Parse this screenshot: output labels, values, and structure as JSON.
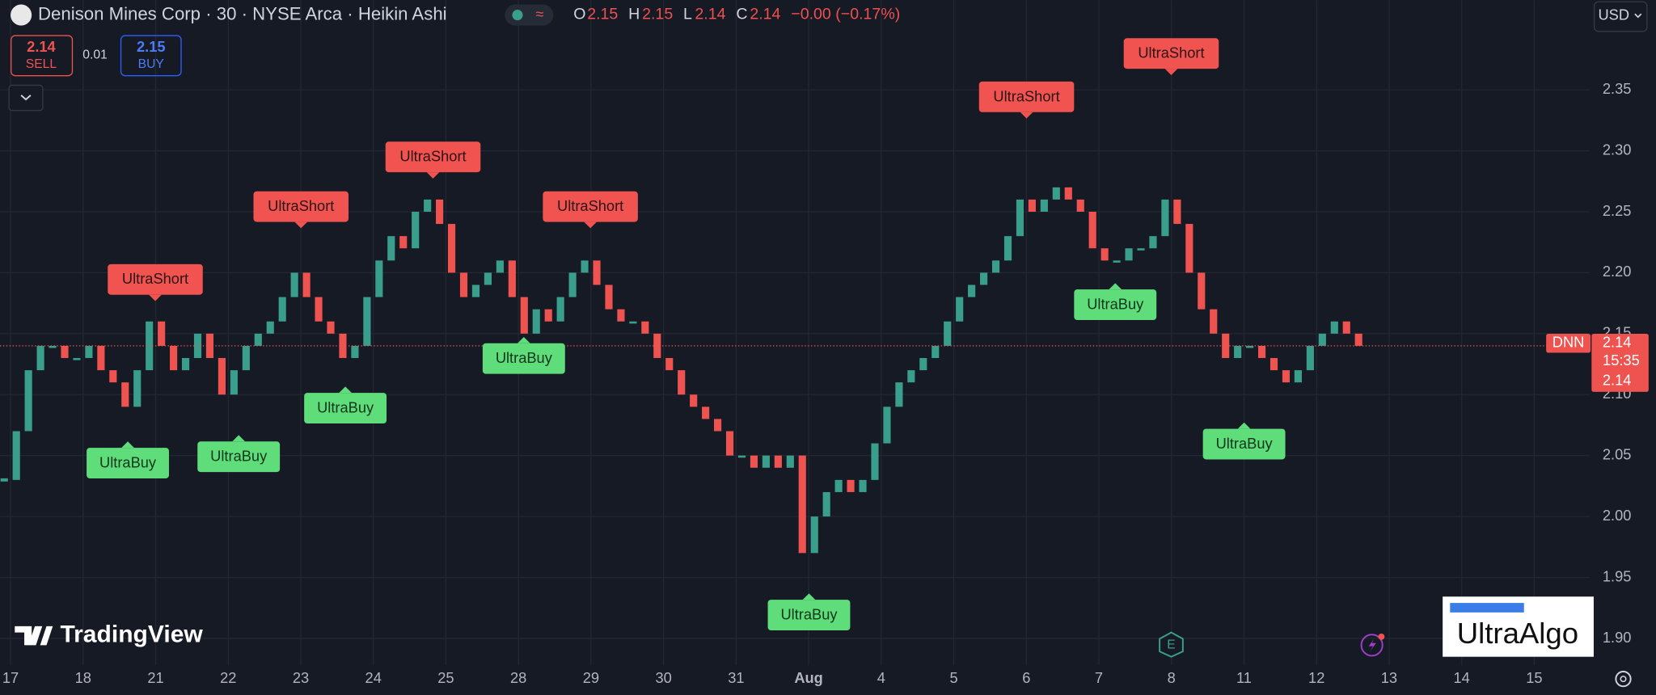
{
  "ui": {
    "title": "Denison Mines Corp · 30 · NYSE Arca · Heikin Ashi",
    "ohlc": [
      {
        "key": "O",
        "value": "2.15"
      },
      {
        "key": "H",
        "value": "2.15"
      },
      {
        "key": "L",
        "value": "2.14"
      },
      {
        "key": "C",
        "value": "2.14"
      }
    ],
    "change": "−0.00 (−0.17%)",
    "sell_price": "2.14",
    "sell_label": "SELL",
    "spread": "0.01",
    "buy_price": "2.15",
    "buy_label": "BUY",
    "currency": "USD",
    "symbol_tag": "DNN",
    "price_tag": "2.14",
    "countdown": "15:35",
    "price_tag_2": "2.14",
    "brand": "TradingView",
    "sponsor": "UltraAlgo",
    "earnings_icon": "E"
  },
  "chart_data": {
    "type": "candlestick",
    "x_labels": [
      "17",
      "18",
      "21",
      "22",
      "23",
      "24",
      "25",
      "28",
      "29",
      "30",
      "31",
      "Aug",
      "4",
      "5",
      "6",
      "7",
      "8",
      "11",
      "12",
      "13",
      "14",
      "15"
    ],
    "values": [
      2.03,
      2.07,
      2.12,
      2.14,
      2.14,
      2.13,
      2.13,
      2.14,
      2.12,
      2.11,
      2.09,
      2.12,
      2.16,
      2.14,
      2.12,
      2.13,
      2.15,
      2.13,
      2.1,
      2.12,
      2.14,
      2.15,
      2.16,
      2.18,
      2.2,
      2.18,
      2.16,
      2.15,
      2.13,
      2.14,
      2.18,
      2.21,
      2.23,
      2.22,
      2.25,
      2.26,
      2.24,
      2.2,
      2.18,
      2.19,
      2.2,
      2.21,
      2.18,
      2.15,
      2.17,
      2.16,
      2.18,
      2.2,
      2.21,
      2.19,
      2.17,
      2.16,
      2.16,
      2.15,
      2.13,
      2.12,
      2.1,
      2.09,
      2.08,
      2.07,
      2.05,
      2.05,
      2.04,
      2.05,
      2.04,
      2.05,
      1.97,
      2.0,
      2.02,
      2.03,
      2.02,
      2.03,
      2.06,
      2.09,
      2.11,
      2.12,
      2.13,
      2.14,
      2.16,
      2.18,
      2.19,
      2.2,
      2.21,
      2.23,
      2.26,
      2.25,
      2.26,
      2.27,
      2.26,
      2.25,
      2.22,
      2.21,
      2.21,
      2.22,
      2.22,
      2.23,
      2.26,
      2.24,
      2.2,
      2.17,
      2.15,
      2.13,
      2.14,
      2.14,
      2.13,
      2.12,
      2.11,
      2.12,
      2.14,
      2.15,
      2.16,
      2.15,
      2.14
    ],
    "up_color": "#3a9e8c",
    "down_color": "#ef5350",
    "ylim": [
      1.878,
      2.4235
    ],
    "yticks": [
      {
        "value": 1.9,
        "label": "1.90"
      },
      1.95,
      {
        "value": 2.0,
        "label": "2.00"
      },
      2.05,
      {
        "value": 2.1,
        "label": "2.10"
      },
      2.15,
      {
        "value": 2.2,
        "label": "2.20"
      },
      2.25,
      {
        "value": 2.3,
        "label": "2.30"
      },
      2.35
    ],
    "grid": true,
    "annotations": [
      "UltraBuy",
      "UltraShort",
      "UltraBuy",
      "UltraShort",
      "UltraBuy",
      "UltraShort",
      "UltraBuy",
      "UltraShort",
      "UltraBuy",
      "UltraShort",
      "UltraBuy",
      "UltraShort",
      "UltraBuy"
    ]
  }
}
